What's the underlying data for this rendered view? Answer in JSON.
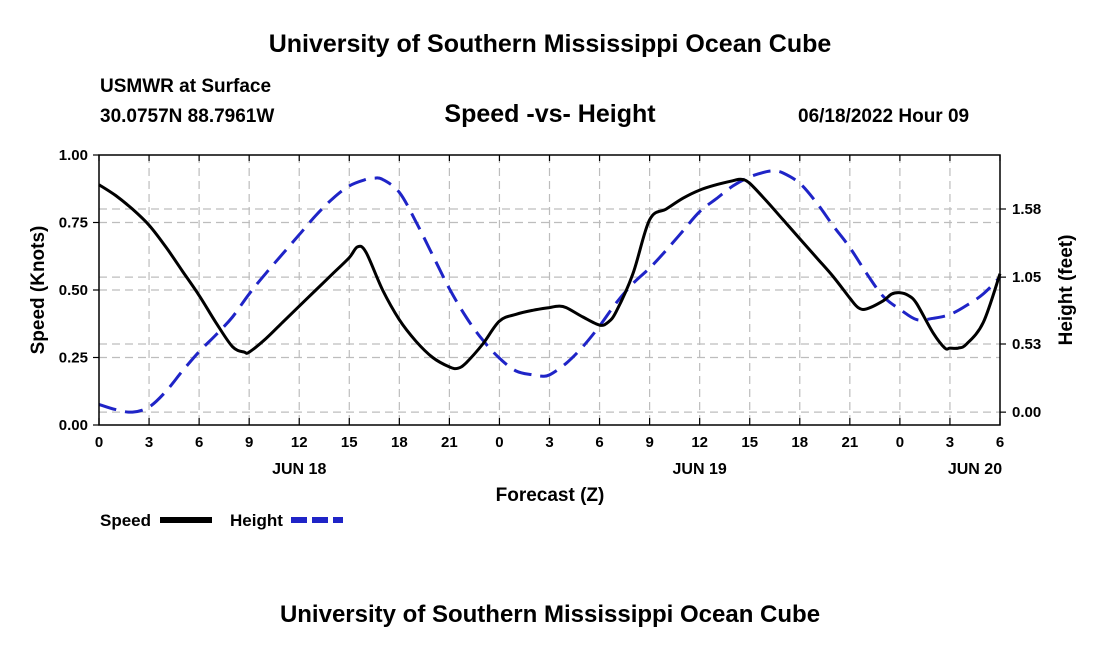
{
  "header": {
    "title": "University of Southern Mississippi Ocean Cube",
    "station": "USMWR at Surface",
    "coords": "30.0757N  88.7961W",
    "chart_subtitle": "Speed -vs- Height",
    "datetime": "06/18/2022 Hour 09",
    "footer_title": "University of Southern Mississippi Ocean Cube"
  },
  "legend": {
    "speed_label": "Speed",
    "height_label": "Height"
  },
  "chart_data": {
    "type": "line",
    "title": "Speed -vs- Height",
    "xlabel": "Forecast (Z)",
    "ylabel": "Speed (Knots)",
    "y2label": "Height (feet)",
    "x_range_hours": [
      0,
      54
    ],
    "x_ticks": [
      {
        "h": 0,
        "label": "0"
      },
      {
        "h": 3,
        "label": "3"
      },
      {
        "h": 6,
        "label": "6"
      },
      {
        "h": 9,
        "label": "9"
      },
      {
        "h": 12,
        "label": "12"
      },
      {
        "h": 15,
        "label": "15"
      },
      {
        "h": 18,
        "label": "18"
      },
      {
        "h": 21,
        "label": "21"
      },
      {
        "h": 24,
        "label": "0"
      },
      {
        "h": 27,
        "label": "3"
      },
      {
        "h": 30,
        "label": "6"
      },
      {
        "h": 33,
        "label": "9"
      },
      {
        "h": 36,
        "label": "12"
      },
      {
        "h": 39,
        "label": "15"
      },
      {
        "h": 42,
        "label": "18"
      },
      {
        "h": 45,
        "label": "21"
      },
      {
        "h": 48,
        "label": "0"
      },
      {
        "h": 51,
        "label": "3"
      },
      {
        "h": 54,
        "label": "6"
      }
    ],
    "date_labels": [
      {
        "h": 12,
        "label": "JUN 18"
      },
      {
        "h": 36,
        "label": "JUN 19"
      },
      {
        "h": 52.5,
        "label": "JUN 20"
      }
    ],
    "ylim": [
      0,
      1
    ],
    "y_ticks": [
      {
        "v": 0,
        "label": "0.00"
      },
      {
        "v": 0.25,
        "label": "0.25"
      },
      {
        "v": 0.5,
        "label": "0.50"
      },
      {
        "v": 0.75,
        "label": "0.75"
      },
      {
        "v": 1,
        "label": "1.00"
      }
    ],
    "y2lim": [
      -0.1,
      2.0
    ],
    "y2_ticks": [
      {
        "v": 0,
        "label": "0.00"
      },
      {
        "v": 0.53,
        "label": "0.53"
      },
      {
        "v": 1.05,
        "label": "1.05"
      },
      {
        "v": 1.58,
        "label": "1.58"
      }
    ],
    "series": [
      {
        "name": "Speed",
        "axis": "left",
        "color": "#000000",
        "dash": "solid",
        "points": [
          [
            0,
            0.89
          ],
          [
            1,
            0.85
          ],
          [
            2,
            0.8
          ],
          [
            3,
            0.74
          ],
          [
            4,
            0.66
          ],
          [
            5,
            0.57
          ],
          [
            6,
            0.48
          ],
          [
            7,
            0.38
          ],
          [
            8,
            0.29
          ],
          [
            8.7,
            0.27
          ],
          [
            9,
            0.27
          ],
          [
            10,
            0.32
          ],
          [
            11,
            0.38
          ],
          [
            12,
            0.44
          ],
          [
            13,
            0.5
          ],
          [
            14,
            0.56
          ],
          [
            15,
            0.62
          ],
          [
            15.5,
            0.66
          ],
          [
            16,
            0.64
          ],
          [
            17,
            0.5
          ],
          [
            18,
            0.39
          ],
          [
            19,
            0.31
          ],
          [
            20,
            0.25
          ],
          [
            21,
            0.215
          ],
          [
            21.5,
            0.21
          ],
          [
            22,
            0.23
          ],
          [
            23,
            0.3
          ],
          [
            24,
            0.385
          ],
          [
            25,
            0.41
          ],
          [
            26,
            0.425
          ],
          [
            27,
            0.435
          ],
          [
            27.5,
            0.44
          ],
          [
            28,
            0.435
          ],
          [
            29,
            0.4
          ],
          [
            30,
            0.37
          ],
          [
            30.5,
            0.38
          ],
          [
            31,
            0.42
          ],
          [
            32,
            0.56
          ],
          [
            33,
            0.76
          ],
          [
            34,
            0.8
          ],
          [
            35,
            0.84
          ],
          [
            36,
            0.87
          ],
          [
            37,
            0.89
          ],
          [
            38,
            0.905
          ],
          [
            38.5,
            0.91
          ],
          [
            39,
            0.895
          ],
          [
            40,
            0.83
          ],
          [
            41,
            0.76
          ],
          [
            42,
            0.69
          ],
          [
            43,
            0.62
          ],
          [
            44,
            0.55
          ],
          [
            45,
            0.47
          ],
          [
            45.5,
            0.435
          ],
          [
            46,
            0.43
          ],
          [
            47,
            0.46
          ],
          [
            47.5,
            0.485
          ],
          [
            48,
            0.49
          ],
          [
            48.5,
            0.48
          ],
          [
            49,
            0.45
          ],
          [
            50,
            0.34
          ],
          [
            50.7,
            0.285
          ],
          [
            51,
            0.285
          ],
          [
            51.5,
            0.285
          ],
          [
            52,
            0.3
          ],
          [
            53,
            0.38
          ],
          [
            54,
            0.56
          ]
        ]
      },
      {
        "name": "Height",
        "axis": "right",
        "color": "#1f24c7",
        "dash": "dashed",
        "points": [
          [
            0,
            0.06
          ],
          [
            1,
            0.02
          ],
          [
            2,
            0.0
          ],
          [
            3,
            0.04
          ],
          [
            4,
            0.16
          ],
          [
            5,
            0.32
          ],
          [
            6,
            0.47
          ],
          [
            7,
            0.6
          ],
          [
            8,
            0.74
          ],
          [
            9,
            0.92
          ],
          [
            10,
            1.08
          ],
          [
            11,
            1.23
          ],
          [
            12,
            1.38
          ],
          [
            13,
            1.53
          ],
          [
            14,
            1.66
          ],
          [
            15,
            1.76
          ],
          [
            16,
            1.81
          ],
          [
            16.5,
            1.82
          ],
          [
            17,
            1.81
          ],
          [
            18,
            1.71
          ],
          [
            19,
            1.48
          ],
          [
            20,
            1.22
          ],
          [
            21,
            0.96
          ],
          [
            22,
            0.74
          ],
          [
            23,
            0.56
          ],
          [
            24,
            0.42
          ],
          [
            25,
            0.32
          ],
          [
            26,
            0.29
          ],
          [
            26.5,
            0.28
          ],
          [
            27,
            0.29
          ],
          [
            28,
            0.38
          ],
          [
            29,
            0.51
          ],
          [
            30,
            0.67
          ],
          [
            31,
            0.85
          ],
          [
            32,
            1.0
          ],
          [
            33,
            1.12
          ],
          [
            34,
            1.26
          ],
          [
            35,
            1.41
          ],
          [
            36,
            1.56
          ],
          [
            37,
            1.66
          ],
          [
            38,
            1.76
          ],
          [
            39,
            1.83
          ],
          [
            40,
            1.87
          ],
          [
            40.5,
            1.875
          ],
          [
            41,
            1.86
          ],
          [
            42,
            1.78
          ],
          [
            43,
            1.63
          ],
          [
            44,
            1.45
          ],
          [
            45,
            1.28
          ],
          [
            46,
            1.08
          ],
          [
            47,
            0.9
          ],
          [
            48,
            0.8
          ],
          [
            49,
            0.72
          ],
          [
            50,
            0.73
          ],
          [
            51,
            0.76
          ],
          [
            52,
            0.83
          ],
          [
            53,
            0.92
          ],
          [
            54,
            1.05
          ]
        ]
      }
    ]
  }
}
